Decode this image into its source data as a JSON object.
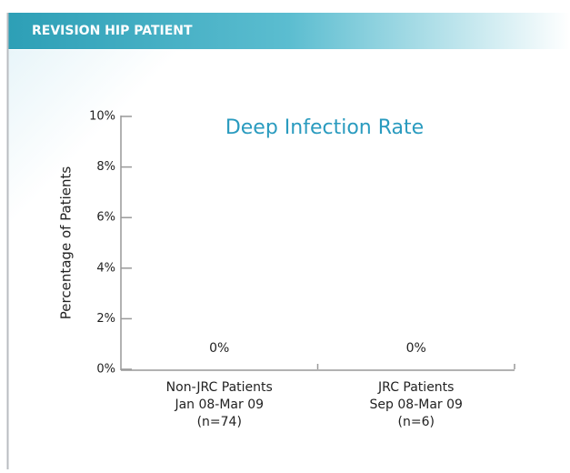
{
  "header": {
    "title": "REVISION HIP PATIENT"
  },
  "chart_data": {
    "type": "bar",
    "title": "Deep Infection Rate",
    "y_label": "Percentage of Patients",
    "categories": [
      [
        "Non-JRC Patients",
        "Jan 08-Mar 09",
        "(n=74)"
      ],
      [
        "JRC Patients",
        "Sep 08-Mar 09",
        "(n=6)"
      ]
    ],
    "values": [
      0,
      0
    ],
    "value_labels": [
      "0%",
      "0%"
    ],
    "color": "#2a9bbf",
    "ylim": [
      0,
      10
    ],
    "yticks": [
      {
        "value": 0,
        "label": "0%"
      },
      {
        "value": 2,
        "label": "2%"
      },
      {
        "value": 4,
        "label": "4%"
      },
      {
        "value": 6,
        "label": "6%"
      },
      {
        "value": 8,
        "label": "8%"
      },
      {
        "value": 10,
        "label": "10%"
      }
    ],
    "grid": false
  }
}
